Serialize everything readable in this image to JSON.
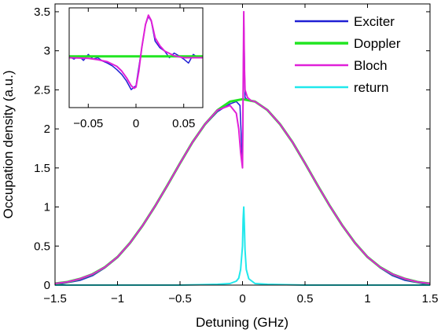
{
  "chart_data": [
    {
      "type": "line",
      "title": "",
      "xlabel": "Detuning (GHz)",
      "ylabel": "Occupation density (a.u.)",
      "xlim": [
        -1.5,
        1.5
      ],
      "ylim": [
        0,
        3.6
      ],
      "xticks": [
        -1.5,
        -1,
        -0.5,
        0,
        0.5,
        1,
        1.5
      ],
      "xtick_labels": [
        "−1.5",
        "−1",
        "−0.5",
        "0",
        "0.5",
        "1",
        "1.5"
      ],
      "yticks": [
        0,
        0.5,
        1,
        1.5,
        2,
        2.5,
        3,
        3.5
      ],
      "ytick_labels": [
        "0",
        "0.5",
        "1",
        "1.5",
        "2",
        "2.5",
        "3",
        "3.5"
      ],
      "grid": false,
      "legend": "top-right",
      "series": [
        {
          "name": "Exciter",
          "color": "#1f1fd4",
          "x": [
            -1.5,
            -1.4,
            -1.3,
            -1.2,
            -1.1,
            -1.0,
            -0.9,
            -0.8,
            -0.7,
            -0.6,
            -0.5,
            -0.4,
            -0.3,
            -0.2,
            -0.15,
            -0.1,
            -0.05,
            -0.02,
            0.0,
            0.01,
            0.02,
            0.05,
            0.1,
            0.15,
            0.2,
            0.3,
            0.4,
            0.5,
            0.6,
            0.7,
            0.8,
            0.9,
            1.0,
            1.1,
            1.2,
            1.3,
            1.4,
            1.5
          ],
          "y": [
            0.0,
            0.03,
            0.06,
            0.12,
            0.22,
            0.35,
            0.53,
            0.75,
            1.0,
            1.27,
            1.55,
            1.82,
            2.05,
            2.22,
            2.27,
            2.32,
            2.35,
            2.3,
            1.5,
            3.45,
            2.4,
            2.36,
            2.35,
            2.3,
            2.24,
            2.06,
            1.83,
            1.56,
            1.28,
            1.01,
            0.76,
            0.54,
            0.36,
            0.22,
            0.12,
            0.06,
            0.03,
            0.0
          ]
        },
        {
          "name": "Doppler",
          "color": "#22e522",
          "x": [
            -1.5,
            -1.4,
            -1.3,
            -1.2,
            -1.1,
            -1.0,
            -0.9,
            -0.8,
            -0.7,
            -0.6,
            -0.5,
            -0.4,
            -0.3,
            -0.2,
            -0.1,
            0.0,
            0.1,
            0.2,
            0.3,
            0.4,
            0.5,
            0.6,
            0.7,
            0.8,
            0.9,
            1.0,
            1.1,
            1.2,
            1.3,
            1.4,
            1.5
          ],
          "y": [
            0.02,
            0.04,
            0.08,
            0.14,
            0.23,
            0.36,
            0.54,
            0.76,
            1.01,
            1.28,
            1.56,
            1.83,
            2.06,
            2.24,
            2.35,
            2.38,
            2.35,
            2.24,
            2.06,
            1.83,
            1.56,
            1.28,
            1.01,
            0.76,
            0.54,
            0.36,
            0.23,
            0.14,
            0.08,
            0.04,
            0.02
          ]
        },
        {
          "name": "Bloch",
          "color": "#e020d8",
          "x": [
            -1.5,
            -1.4,
            -1.3,
            -1.2,
            -1.1,
            -1.0,
            -0.9,
            -0.8,
            -0.7,
            -0.6,
            -0.5,
            -0.4,
            -0.3,
            -0.2,
            -0.1,
            -0.05,
            -0.03,
            -0.015,
            0.0,
            0.01,
            0.015,
            0.02,
            0.04,
            0.07,
            0.1,
            0.2,
            0.3,
            0.4,
            0.5,
            0.6,
            0.7,
            0.8,
            0.9,
            1.0,
            1.1,
            1.2,
            1.3,
            1.4,
            1.5
          ],
          "y": [
            0.02,
            0.04,
            0.08,
            0.14,
            0.23,
            0.36,
            0.54,
            0.76,
            1.01,
            1.28,
            1.56,
            1.83,
            2.06,
            2.24,
            2.3,
            2.2,
            2.0,
            1.7,
            1.5,
            3.5,
            2.8,
            2.5,
            2.4,
            2.36,
            2.35,
            2.24,
            2.06,
            1.83,
            1.56,
            1.28,
            1.01,
            0.76,
            0.54,
            0.36,
            0.23,
            0.14,
            0.08,
            0.04,
            0.02
          ]
        },
        {
          "name": "return",
          "color": "#20e8ec",
          "x": [
            -1.5,
            -0.5,
            -0.2,
            -0.1,
            -0.05,
            -0.03,
            -0.015,
            0.0,
            0.005,
            0.01,
            0.015,
            0.02,
            0.03,
            0.05,
            0.1,
            0.2,
            0.5,
            1.5
          ],
          "y": [
            0.0,
            0.0,
            0.01,
            0.02,
            0.05,
            0.09,
            0.2,
            0.5,
            0.85,
            1.0,
            0.75,
            0.45,
            0.2,
            0.08,
            0.02,
            0.01,
            0.0,
            0.0
          ]
        }
      ]
    },
    {
      "type": "line",
      "title": "",
      "xlim": [
        -0.07,
        0.07
      ],
      "ylim": [
        2.05,
        3.55
      ],
      "xticks": [
        -0.05,
        0,
        0.05
      ],
      "xtick_labels": [
        "−0.05",
        "0",
        "0.05"
      ],
      "grid": false,
      "series": [
        {
          "name": "Exciter",
          "color": "#1f1fd4",
          "x": [
            -0.07,
            -0.065,
            -0.06,
            -0.055,
            -0.05,
            -0.045,
            -0.04,
            -0.035,
            -0.03,
            -0.025,
            -0.02,
            -0.015,
            -0.01,
            -0.005,
            0.0,
            0.005,
            0.01,
            0.013,
            0.016,
            0.02,
            0.025,
            0.03,
            0.035,
            0.04,
            0.045,
            0.05,
            0.055,
            0.06,
            0.065,
            0.07
          ],
          "y": [
            2.82,
            2.78,
            2.83,
            2.76,
            2.85,
            2.78,
            2.8,
            2.75,
            2.72,
            2.68,
            2.62,
            2.55,
            2.45,
            2.32,
            2.38,
            2.85,
            3.3,
            3.42,
            3.35,
            3.05,
            2.95,
            2.9,
            2.8,
            2.87,
            2.83,
            2.78,
            2.72,
            2.85,
            2.8,
            2.82
          ]
        },
        {
          "name": "Doppler",
          "color": "#22e522",
          "x": [
            -0.07,
            0.07
          ],
          "y": [
            2.82,
            2.82
          ]
        },
        {
          "name": "Bloch",
          "color": "#e020d8",
          "x": [
            -0.07,
            -0.05,
            -0.04,
            -0.03,
            -0.02,
            -0.015,
            -0.01,
            -0.005,
            -0.002,
            0.0,
            0.003,
            0.006,
            0.01,
            0.013,
            0.016,
            0.02,
            0.025,
            0.03,
            0.04,
            0.05,
            0.07
          ],
          "y": [
            2.8,
            2.79,
            2.77,
            2.74,
            2.67,
            2.6,
            2.5,
            2.38,
            2.34,
            2.36,
            2.6,
            2.95,
            3.3,
            3.44,
            3.36,
            3.1,
            2.98,
            2.9,
            2.83,
            2.8,
            2.8
          ]
        }
      ]
    }
  ]
}
